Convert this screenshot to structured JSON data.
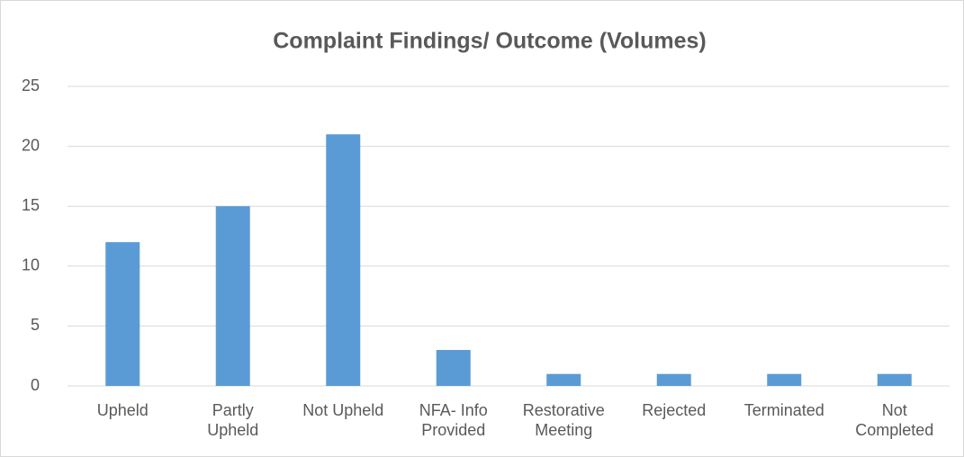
{
  "chart_data": {
    "type": "bar",
    "title": "Complaint Findings/ Outcome (Volumes)",
    "categories": [
      "Upheld",
      "Partly Upheld",
      "Not Upheld",
      "NFA- Info Provided",
      "Restorative Meeting",
      "Rejected",
      "Terminated",
      "Not Completed"
    ],
    "values": [
      12,
      15,
      21,
      3,
      1,
      1,
      1,
      1
    ],
    "color": "#5b9bd5",
    "ylim": [
      0,
      25
    ],
    "yticks": [
      0,
      5,
      10,
      15,
      20,
      25
    ],
    "grid": true
  }
}
